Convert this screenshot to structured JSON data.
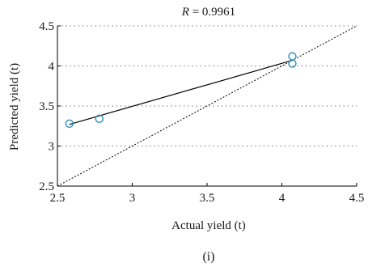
{
  "chart_data": {
    "type": "scatter",
    "title_prefix": "R",
    "title_suffix": " = 0.9961",
    "xlabel": "Actual yield (t)",
    "ylabel": "Predicted yield (t)",
    "panel_label": "(i)",
    "xlim": [
      2.5,
      4.5
    ],
    "ylim": [
      2.5,
      4.5
    ],
    "x_ticks": [
      "2.5",
      "3",
      "3.5",
      "4",
      "4.5"
    ],
    "y_ticks": [
      "2.5",
      "3",
      "3.5",
      "4",
      "4.5"
    ],
    "grid": "horizontal-dotted",
    "points": [
      {
        "x": 2.58,
        "y": 3.28
      },
      {
        "x": 2.78,
        "y": 3.34
      },
      {
        "x": 4.07,
        "y": 4.12
      },
      {
        "x": 4.07,
        "y": 4.03
      }
    ],
    "fit_line": {
      "x": [
        2.58,
        4.07
      ],
      "y": [
        3.27,
        4.07
      ]
    },
    "reference_line": {
      "x": [
        2.5,
        4.5
      ],
      "y": [
        2.5,
        4.5
      ]
    },
    "colors": {
      "points": "#2a8fbd",
      "fit_line": "#000000",
      "reference_line": "#000000",
      "grid": "#555555"
    }
  }
}
